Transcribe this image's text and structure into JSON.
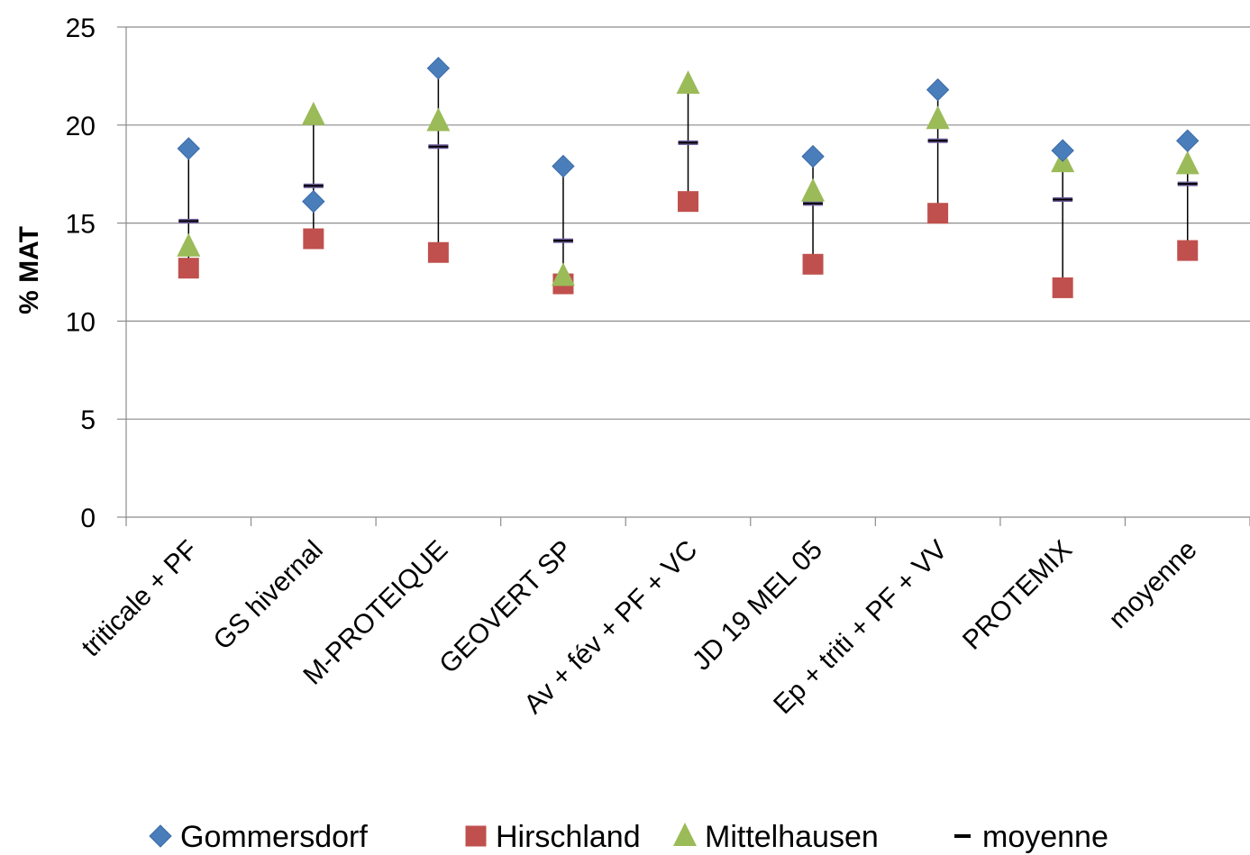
{
  "chart_data": {
    "type": "scatter",
    "title": "",
    "xlabel": "",
    "ylabel": "% MAT",
    "ylim": [
      0,
      25
    ],
    "yticks": [
      0,
      5,
      10,
      15,
      20,
      25
    ],
    "grid": true,
    "legend_position": "bottom",
    "categories": [
      "triticale + PF",
      "GS hivernal",
      "M-PROTEIQUE",
      "GEOVERT SP",
      "Av + fév + PF + VC",
      "JD 19 MEL 05",
      "Ep + triti + PF + VV",
      "PROTEMIX",
      "moyenne"
    ],
    "series": [
      {
        "name": "Gommersdorf",
        "marker": "diamond",
        "color": "#4a7ebb",
        "values": [
          18.8,
          16.1,
          22.9,
          17.9,
          null,
          18.4,
          21.8,
          18.7,
          19.2
        ]
      },
      {
        "name": "Hirschland",
        "marker": "square",
        "color": "#c0504d",
        "values": [
          12.7,
          14.2,
          13.5,
          11.9,
          16.1,
          12.9,
          15.5,
          11.7,
          13.6
        ]
      },
      {
        "name": "Mittelhausen",
        "marker": "triangle",
        "color": "#9bbb59",
        "values": [
          13.8,
          20.5,
          20.2,
          12.3,
          22.1,
          16.6,
          20.3,
          18.1,
          18.0
        ]
      },
      {
        "name": "moyenne",
        "marker": "dash",
        "color": "#000000",
        "values": [
          15.1,
          16.9,
          18.9,
          14.1,
          19.1,
          16.0,
          19.2,
          16.2,
          17.0
        ]
      }
    ]
  }
}
